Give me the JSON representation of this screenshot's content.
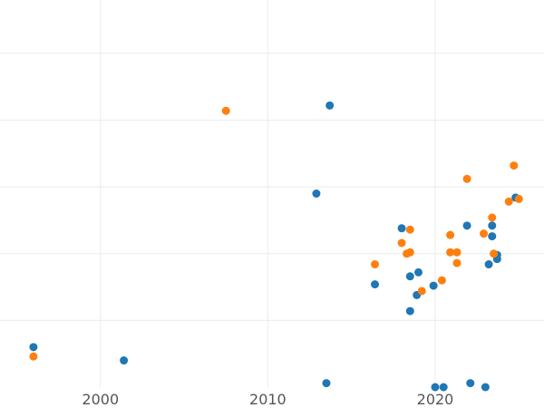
{
  "chart_data": {
    "type": "scatter",
    "title": "",
    "xlabel": "",
    "ylabel": "",
    "xlim": [
      1994,
      2026.5
    ],
    "ylim": [
      0,
      29
    ],
    "x_ticks": [
      2000,
      2010,
      2020
    ],
    "x_tick_labels": [
      "2000",
      "2010",
      "2020"
    ],
    "y_gridlines": [
      5,
      10,
      15,
      20,
      25
    ],
    "grid": true,
    "legend": "none",
    "series": [
      {
        "color": "#1f77b4",
        "points": [
          {
            "x": 1996.0,
            "y": 3.0
          },
          {
            "x": 2001.4,
            "y": 2.0
          },
          {
            "x": 2012.9,
            "y": 14.5
          },
          {
            "x": 2013.7,
            "y": 21.1
          },
          {
            "x": 2013.5,
            "y": 0.3
          },
          {
            "x": 2016.4,
            "y": 7.7
          },
          {
            "x": 2018.0,
            "y": 11.9
          },
          {
            "x": 2018.5,
            "y": 8.3
          },
          {
            "x": 2018.5,
            "y": 5.7
          },
          {
            "x": 2018.9,
            "y": 6.9
          },
          {
            "x": 2019.0,
            "y": 8.6
          },
          {
            "x": 2019.9,
            "y": 7.6
          },
          {
            "x": 2020.0,
            "y": 0.0
          },
          {
            "x": 2020.5,
            "y": 0.0
          },
          {
            "x": 2021.9,
            "y": 12.1
          },
          {
            "x": 2022.1,
            "y": 0.3
          },
          {
            "x": 2023.0,
            "y": 0.0
          },
          {
            "x": 2023.2,
            "y": 9.2
          },
          {
            "x": 2023.4,
            "y": 12.1
          },
          {
            "x": 2023.4,
            "y": 11.3
          },
          {
            "x": 2023.7,
            "y": 9.6
          },
          {
            "x": 2023.7,
            "y": 9.9
          },
          {
            "x": 2024.8,
            "y": 14.2
          }
        ]
      },
      {
        "color": "#ff7f0e",
        "points": [
          {
            "x": 1996.0,
            "y": 2.3
          },
          {
            "x": 2007.5,
            "y": 20.7
          },
          {
            "x": 2016.4,
            "y": 9.2
          },
          {
            "x": 2018.0,
            "y": 10.8
          },
          {
            "x": 2018.3,
            "y": 10.0
          },
          {
            "x": 2018.5,
            "y": 10.1
          },
          {
            "x": 2018.5,
            "y": 11.8
          },
          {
            "x": 2019.2,
            "y": 7.2
          },
          {
            "x": 2020.4,
            "y": 8.0
          },
          {
            "x": 2020.9,
            "y": 11.4
          },
          {
            "x": 2020.9,
            "y": 10.1
          },
          {
            "x": 2021.3,
            "y": 9.3
          },
          {
            "x": 2021.3,
            "y": 10.1
          },
          {
            "x": 2021.9,
            "y": 15.6
          },
          {
            "x": 2022.9,
            "y": 11.5
          },
          {
            "x": 2023.4,
            "y": 12.7
          },
          {
            "x": 2023.5,
            "y": 10.0
          },
          {
            "x": 2024.4,
            "y": 13.9
          },
          {
            "x": 2024.7,
            "y": 16.6
          },
          {
            "x": 2025.0,
            "y": 14.1
          }
        ]
      }
    ]
  }
}
